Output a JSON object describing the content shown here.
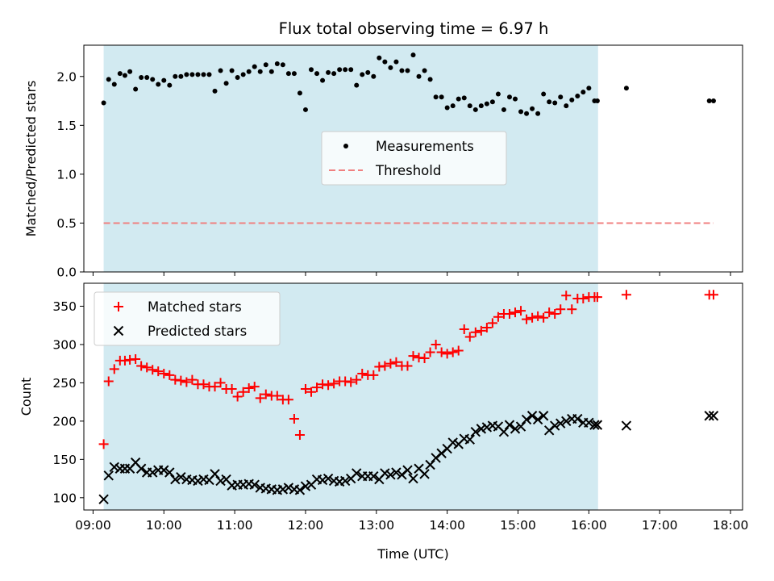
{
  "figure": {
    "title": "Flux total observing time = 6.97 h",
    "xlabel": "Time (UTC)",
    "xticks": [
      {
        "value": 9,
        "label": "09:00"
      },
      {
        "value": 10,
        "label": "10:00"
      },
      {
        "value": 11,
        "label": "11:00"
      },
      {
        "value": 12,
        "label": "12:00"
      },
      {
        "value": 13,
        "label": "13:00"
      },
      {
        "value": 14,
        "label": "14:00"
      },
      {
        "value": 15,
        "label": "15:00"
      },
      {
        "value": 16,
        "label": "16:00"
      },
      {
        "value": 17,
        "label": "17:00"
      },
      {
        "value": 18,
        "label": "18:00"
      }
    ],
    "xlim": [
      8.87,
      18.17
    ],
    "observing_window": [
      9.15,
      16.13
    ],
    "colors": {
      "window": "#add8e6",
      "measurements": "#000000",
      "threshold": "#f08080",
      "matched": "#ff0000",
      "predicted": "#000000"
    }
  },
  "chart_data": [
    {
      "type": "scatter",
      "ylabel": "Matched/Predicted stars",
      "ylim": [
        0,
        2.32
      ],
      "yticks": [
        {
          "value": 0,
          "label": "0.0"
        },
        {
          "value": 0.5,
          "label": "0.5"
        },
        {
          "value": 1.0,
          "label": "1.0"
        },
        {
          "value": 1.5,
          "label": "1.5"
        },
        {
          "value": 2.0,
          "label": "2.0"
        }
      ],
      "legend": {
        "placement": "center",
        "entries": [
          "Measurements",
          "Threshold"
        ]
      },
      "series": [
        {
          "name": "Measurements",
          "marker": "dot",
          "x": [
            9.15,
            9.22,
            9.3,
            9.38,
            9.45,
            9.52,
            9.6,
            9.68,
            9.76,
            9.84,
            9.92,
            10.0,
            10.08,
            10.16,
            10.24,
            10.32,
            10.4,
            10.48,
            10.56,
            10.64,
            10.72,
            10.8,
            10.88,
            10.96,
            11.04,
            11.12,
            11.2,
            11.28,
            11.36,
            11.44,
            11.52,
            11.6,
            11.68,
            11.76,
            11.84,
            11.92,
            12.0,
            12.08,
            12.16,
            12.24,
            12.32,
            12.4,
            12.48,
            12.56,
            12.64,
            12.72,
            12.8,
            12.88,
            12.96,
            13.04,
            13.12,
            13.2,
            13.28,
            13.36,
            13.44,
            13.52,
            13.6,
            13.68,
            13.76,
            13.84,
            13.92,
            14.0,
            14.08,
            14.16,
            14.24,
            14.32,
            14.4,
            14.48,
            14.56,
            14.64,
            14.72,
            14.8,
            14.88,
            14.96,
            15.04,
            15.12,
            15.2,
            15.28,
            15.36,
            15.44,
            15.52,
            15.6,
            15.68,
            15.76,
            15.84,
            15.92,
            16.0,
            16.08,
            16.12,
            16.53,
            17.7,
            17.76
          ],
          "y": [
            1.73,
            1.97,
            1.92,
            2.03,
            2.01,
            2.05,
            1.87,
            1.99,
            1.99,
            1.97,
            1.92,
            1.96,
            1.91,
            2.0,
            2.0,
            2.02,
            2.02,
            2.02,
            2.02,
            2.02,
            1.85,
            2.06,
            1.93,
            2.06,
            1.99,
            2.02,
            2.05,
            2.1,
            2.05,
            2.12,
            2.05,
            2.13,
            2.12,
            2.03,
            2.03,
            1.83,
            1.66,
            2.07,
            2.03,
            1.96,
            2.04,
            2.03,
            2.07,
            2.07,
            2.07,
            1.91,
            2.02,
            2.04,
            2.0,
            2.19,
            2.15,
            2.09,
            2.15,
            2.06,
            2.06,
            2.22,
            2.0,
            2.06,
            1.97,
            1.79,
            1.79,
            1.68,
            1.7,
            1.77,
            1.78,
            1.7,
            1.66,
            1.7,
            1.72,
            1.74,
            1.82,
            1.66,
            1.79,
            1.77,
            1.64,
            1.62,
            1.67,
            1.62,
            1.82,
            1.74,
            1.73,
            1.79,
            1.7,
            1.76,
            1.8,
            1.84,
            1.88,
            1.75,
            1.75,
            1.88,
            1.75,
            1.75
          ]
        },
        {
          "name": "Threshold",
          "marker": "dashed-line",
          "x": [
            9.15,
            17.76
          ],
          "y": [
            0.5,
            0.5
          ]
        }
      ]
    },
    {
      "type": "scatter",
      "ylabel": "Count",
      "ylim": [
        84,
        380
      ],
      "yticks": [
        {
          "value": 100,
          "label": "100"
        },
        {
          "value": 150,
          "label": "150"
        },
        {
          "value": 200,
          "label": "200"
        },
        {
          "value": 250,
          "label": "250"
        },
        {
          "value": 300,
          "label": "300"
        },
        {
          "value": 350,
          "label": "350"
        }
      ],
      "legend": {
        "placement": "top-left",
        "entries": [
          "Matched stars",
          "Predicted stars"
        ]
      },
      "series": [
        {
          "name": "Matched stars",
          "marker": "plus",
          "x": [
            9.15,
            9.22,
            9.3,
            9.38,
            9.45,
            9.52,
            9.6,
            9.68,
            9.76,
            9.84,
            9.92,
            10.0,
            10.08,
            10.16,
            10.24,
            10.32,
            10.4,
            10.48,
            10.56,
            10.64,
            10.72,
            10.8,
            10.88,
            10.96,
            11.04,
            11.12,
            11.2,
            11.28,
            11.36,
            11.44,
            11.52,
            11.6,
            11.68,
            11.76,
            11.84,
            11.92,
            12.0,
            12.08,
            12.16,
            12.24,
            12.32,
            12.4,
            12.48,
            12.56,
            12.64,
            12.72,
            12.8,
            12.88,
            12.96,
            13.04,
            13.12,
            13.2,
            13.28,
            13.36,
            13.44,
            13.52,
            13.6,
            13.68,
            13.76,
            13.84,
            13.92,
            14.0,
            14.08,
            14.16,
            14.24,
            14.32,
            14.4,
            14.48,
            14.56,
            14.64,
            14.72,
            14.8,
            14.88,
            14.96,
            15.04,
            15.12,
            15.2,
            15.28,
            15.36,
            15.44,
            15.52,
            15.6,
            15.68,
            15.76,
            15.84,
            15.92,
            16.0,
            16.08,
            16.12,
            16.53,
            17.7,
            17.76
          ],
          "y": [
            170,
            252,
            268,
            279,
            279,
            280,
            281,
            272,
            270,
            267,
            265,
            262,
            260,
            254,
            253,
            251,
            254,
            248,
            248,
            245,
            245,
            250,
            242,
            242,
            232,
            238,
            243,
            245,
            230,
            235,
            233,
            233,
            228,
            228,
            203,
            182,
            242,
            238,
            244,
            248,
            247,
            249,
            252,
            252,
            251,
            254,
            262,
            260,
            260,
            271,
            272,
            275,
            277,
            272,
            272,
            285,
            283,
            282,
            290,
            300,
            290,
            288,
            290,
            292,
            320,
            310,
            316,
            318,
            322,
            328,
            336,
            340,
            340,
            342,
            344,
            333,
            335,
            337,
            335,
            342,
            340,
            346,
            364,
            346,
            360,
            360,
            362,
            362,
            362,
            365,
            365,
            365
          ]
        },
        {
          "name": "Predicted stars",
          "marker": "x",
          "x": [
            9.15,
            9.22,
            9.3,
            9.38,
            9.45,
            9.52,
            9.6,
            9.68,
            9.76,
            9.84,
            9.92,
            10.0,
            10.08,
            10.16,
            10.24,
            10.32,
            10.4,
            10.48,
            10.56,
            10.64,
            10.72,
            10.8,
            10.88,
            10.96,
            11.04,
            11.12,
            11.2,
            11.28,
            11.36,
            11.44,
            11.52,
            11.6,
            11.68,
            11.76,
            11.84,
            11.92,
            12.0,
            12.08,
            12.16,
            12.24,
            12.32,
            12.4,
            12.48,
            12.56,
            12.64,
            12.72,
            12.8,
            12.88,
            12.96,
            13.04,
            13.12,
            13.2,
            13.28,
            13.36,
            13.44,
            13.52,
            13.6,
            13.68,
            13.76,
            13.84,
            13.92,
            14.0,
            14.08,
            14.16,
            14.24,
            14.32,
            14.4,
            14.48,
            14.56,
            14.64,
            14.72,
            14.8,
            14.88,
            14.96,
            15.04,
            15.12,
            15.2,
            15.28,
            15.36,
            15.44,
            15.52,
            15.6,
            15.68,
            15.76,
            15.84,
            15.92,
            16.0,
            16.08,
            16.12,
            16.53,
            17.7,
            17.76
          ],
          "y": [
            98,
            129,
            140,
            138,
            138,
            138,
            146,
            138,
            133,
            133,
            136,
            136,
            133,
            124,
            127,
            124,
            123,
            122,
            124,
            123,
            131,
            122,
            124,
            116,
            117,
            117,
            118,
            117,
            113,
            112,
            111,
            110,
            111,
            113,
            111,
            110,
            115,
            117,
            124,
            123,
            125,
            122,
            121,
            122,
            125,
            132,
            128,
            128,
            128,
            124,
            132,
            130,
            133,
            130,
            136,
            125,
            138,
            131,
            143,
            152,
            158,
            164,
            172,
            170,
            177,
            176,
            186,
            190,
            192,
            194,
            193,
            186,
            195,
            190,
            193,
            202,
            207,
            202,
            207,
            188,
            194,
            197,
            200,
            203,
            203,
            198,
            198,
            195,
            195,
            194,
            207,
            207
          ]
        }
      ]
    }
  ]
}
